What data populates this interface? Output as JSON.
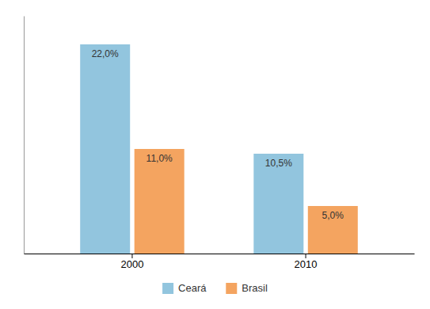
{
  "chart_data": {
    "type": "bar",
    "categories": [
      "2000",
      "2010"
    ],
    "series": [
      {
        "name": "Ceará",
        "color": "#92c5de",
        "values": [
          22.0,
          10.5
        ],
        "value_labels": [
          "22,0%",
          "10,5%"
        ]
      },
      {
        "name": "Brasil",
        "color": "#f4a460",
        "values": [
          11.0,
          5.0
        ],
        "value_labels": [
          "11,0%",
          "5,0%"
        ]
      }
    ],
    "ylim": [
      0,
      25
    ],
    "data_labels": true,
    "tick_labels": "x",
    "legend": "bottom"
  }
}
